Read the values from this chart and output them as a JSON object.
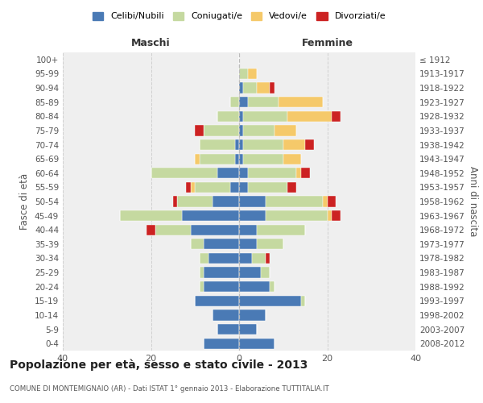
{
  "age_groups": [
    "0-4",
    "5-9",
    "10-14",
    "15-19",
    "20-24",
    "25-29",
    "30-34",
    "35-39",
    "40-44",
    "45-49",
    "50-54",
    "55-59",
    "60-64",
    "65-69",
    "70-74",
    "75-79",
    "80-84",
    "85-89",
    "90-94",
    "95-99",
    "100+"
  ],
  "birth_years": [
    "2008-2012",
    "2003-2007",
    "1998-2002",
    "1993-1997",
    "1988-1992",
    "1983-1987",
    "1978-1982",
    "1973-1977",
    "1968-1972",
    "1963-1967",
    "1958-1962",
    "1953-1957",
    "1948-1952",
    "1943-1947",
    "1938-1942",
    "1933-1937",
    "1928-1932",
    "1923-1927",
    "1918-1922",
    "1913-1917",
    "≤ 1912"
  ],
  "colors": {
    "celibi": "#4a7ab5",
    "coniugati": "#c5d9a0",
    "vedovi": "#f5c96a",
    "divorziati": "#cc2222"
  },
  "maschi": {
    "celibi": [
      8,
      5,
      6,
      10,
      8,
      8,
      7,
      8,
      11,
      13,
      6,
      2,
      5,
      1,
      1,
      0,
      0,
      0,
      0,
      0,
      0
    ],
    "coniugati": [
      0,
      0,
      0,
      0,
      1,
      1,
      2,
      3,
      8,
      14,
      8,
      8,
      15,
      8,
      8,
      8,
      5,
      2,
      0,
      0,
      0
    ],
    "vedovi": [
      0,
      0,
      0,
      0,
      0,
      0,
      0,
      0,
      0,
      0,
      0,
      1,
      0,
      1,
      0,
      0,
      0,
      0,
      0,
      0,
      0
    ],
    "divorziati": [
      0,
      0,
      0,
      0,
      0,
      0,
      0,
      0,
      2,
      0,
      1,
      1,
      0,
      0,
      0,
      2,
      0,
      0,
      0,
      0,
      0
    ]
  },
  "femmine": {
    "celibi": [
      8,
      4,
      6,
      14,
      7,
      5,
      3,
      4,
      4,
      6,
      6,
      2,
      2,
      1,
      1,
      1,
      1,
      2,
      1,
      0,
      0
    ],
    "coniugati": [
      0,
      0,
      0,
      1,
      1,
      2,
      3,
      6,
      11,
      14,
      13,
      9,
      11,
      9,
      9,
      7,
      10,
      7,
      3,
      2,
      0
    ],
    "vedovi": [
      0,
      0,
      0,
      0,
      0,
      0,
      0,
      0,
      0,
      1,
      1,
      0,
      1,
      4,
      5,
      5,
      10,
      10,
      3,
      2,
      0
    ],
    "divorziati": [
      0,
      0,
      0,
      0,
      0,
      0,
      1,
      0,
      0,
      2,
      2,
      2,
      2,
      0,
      2,
      0,
      2,
      0,
      1,
      0,
      0
    ]
  },
  "xlim": 40,
  "title": "Popolazione per età, sesso e stato civile - 2013",
  "subtitle": "COMUNE DI MONTEMIGNAIO (AR) - Dati ISTAT 1° gennaio 2013 - Elaborazione TUTTITALIA.IT",
  "ylabel_left": "Fasce di età",
  "ylabel_right": "Anni di nascita",
  "xlabel_left": "Maschi",
  "xlabel_right": "Femmine",
  "bg_color": "#ffffff",
  "grid_color": "#cccccc"
}
